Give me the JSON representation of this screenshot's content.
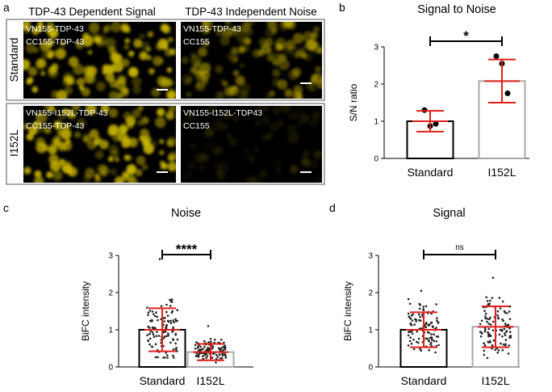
{
  "panels": {
    "a": {
      "label": "a",
      "col_titles": [
        "TDP-43 Dependent Signal",
        "TDP-43 Independent Noise"
      ],
      "rows": [
        {
          "label": "Standard",
          "cells": [
            {
              "line1": "VN155-TDP-43",
              "line2": "CC155-TDP-43",
              "brightness": 1.0
            },
            {
              "line1": "VN155-TDP-43",
              "line2": "CC155",
              "brightness": 0.55
            }
          ]
        },
        {
          "label": "I152L",
          "cells": [
            {
              "line1": "VN155-I152L-TDP-43",
              "line2": "CC155-TDP-43",
              "brightness": 0.95
            },
            {
              "line1": "VN155-I152L-TDP43",
              "line2": "CC155",
              "brightness": 0.12
            }
          ]
        }
      ],
      "image_color": "#c8b400"
    },
    "b": {
      "label": "b"
    },
    "c": {
      "label": "c"
    },
    "d": {
      "label": "d"
    }
  },
  "chart_data": [
    {
      "id": "b",
      "type": "bar",
      "title": "Signal to Noise",
      "ylabel": "S/N ratio",
      "xlabel": "",
      "categories": [
        "Standard",
        "I152L"
      ],
      "values": [
        1.0,
        2.08
      ],
      "errors": [
        0.28,
        0.58
      ],
      "points": [
        [
          1.3,
          0.87,
          0.93
        ],
        [
          2.75,
          2.55,
          1.75
        ]
      ],
      "ylim": [
        0,
        3
      ],
      "yticks": [
        0,
        1,
        2,
        3
      ],
      "significance": "*",
      "bar_colors": [
        "#000000",
        "#a8a8a8"
      ],
      "error_color": "#e0201c"
    },
    {
      "id": "c",
      "type": "bar",
      "title": "Noise",
      "ylabel": "BiFC intensity",
      "xlabel": "",
      "categories": [
        "Standard",
        "I152L"
      ],
      "values": [
        1.0,
        0.4
      ],
      "errors": [
        0.58,
        0.22
      ],
      "scatter_spread": [
        [
          0.25,
          2.9
        ],
        [
          0.1,
          1.1
        ]
      ],
      "ylim": [
        0,
        3
      ],
      "yticks": [
        0,
        1,
        2,
        3
      ],
      "significance": "****",
      "bar_colors": [
        "#000000",
        "#a8a8a8"
      ],
      "error_color": "#e0201c"
    },
    {
      "id": "d",
      "type": "bar",
      "title": "Signal",
      "ylabel": "BiFC intensity",
      "xlabel": "",
      "categories": [
        "Standard",
        "I152L"
      ],
      "values": [
        1.0,
        1.08
      ],
      "errors": [
        0.47,
        0.55
      ],
      "scatter_spread": [
        [
          0.1,
          2.05
        ],
        [
          0.05,
          2.4
        ]
      ],
      "ylim": [
        0,
        3
      ],
      "yticks": [
        0,
        1,
        2,
        3
      ],
      "significance": "ns",
      "bar_colors": [
        "#000000",
        "#a8a8a8"
      ],
      "error_color": "#e0201c"
    }
  ]
}
